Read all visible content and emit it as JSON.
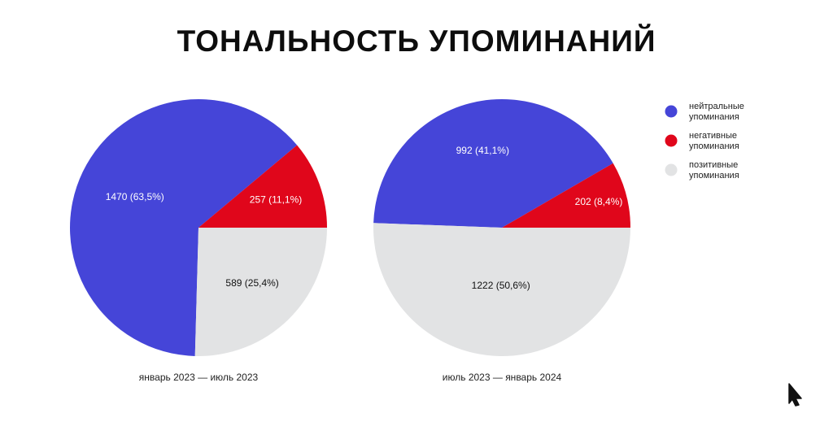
{
  "title": "ТОНАЛЬНОСТЬ УПОМИНАНИЙ",
  "colors": {
    "neutral": "#4545D8",
    "negative": "#E0061B",
    "positive": "#E2E3E4"
  },
  "legend": [
    {
      "key": "neutral",
      "lines": [
        "нейтральные",
        "упоминания"
      ]
    },
    {
      "key": "negative",
      "lines": [
        "негативные",
        "упоминания"
      ]
    },
    {
      "key": "positive",
      "lines": [
        "позитивные",
        "упоминания"
      ]
    }
  ],
  "logo_icon": "cursor-arrow-logo",
  "chart_data": [
    {
      "type": "pie",
      "caption": "январь 2023 — июль 2023",
      "slices": [
        {
          "key": "neutral",
          "value": 1470,
          "percent": 63.5,
          "label": "1470 (63,5%)"
        },
        {
          "key": "negative",
          "value": 257,
          "percent": 11.1,
          "label": "257 (11,1%)"
        },
        {
          "key": "positive",
          "value": 589,
          "percent": 25.4,
          "label": "589 (25,4%)"
        }
      ]
    },
    {
      "type": "pie",
      "caption": "июль 2023 — январь 2024",
      "slices": [
        {
          "key": "neutral",
          "value": 992,
          "percent": 41.1,
          "label": "992 (41,1%)"
        },
        {
          "key": "negative",
          "value": 202,
          "percent": 8.4,
          "label": "202 (8,4%)"
        },
        {
          "key": "positive",
          "value": 1222,
          "percent": 50.6,
          "label": "1222 (50,6%)"
        }
      ]
    }
  ]
}
